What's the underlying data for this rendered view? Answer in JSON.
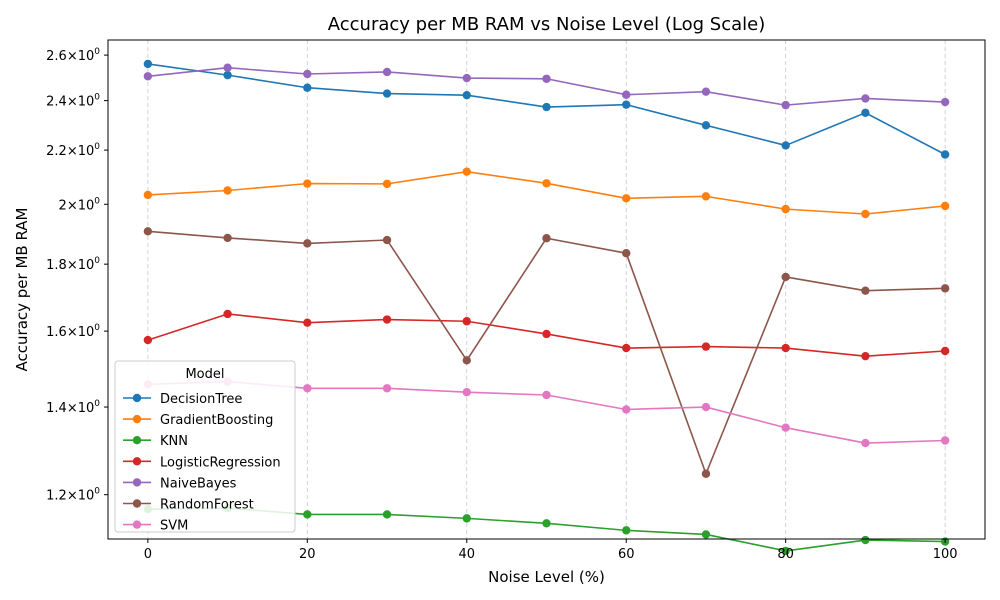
{
  "chart_data": {
    "type": "line",
    "title": "Accuracy per MB RAM vs Noise Level (Log Scale)",
    "xlabel": "Noise Level (%)",
    "ylabel": "Accuracy per MB RAM",
    "yscale": "log",
    "xlim": [
      -5,
      105
    ],
    "ylim": [
      1.11,
      2.67
    ],
    "x": [
      0,
      10,
      20,
      30,
      40,
      50,
      60,
      70,
      80,
      90,
      100
    ],
    "x_ticks": [
      "0",
      "20",
      "40",
      "60",
      "80",
      "100"
    ],
    "x_tick_values": [
      0,
      20,
      40,
      60,
      80,
      100
    ],
    "y_tick_values": [
      1.2,
      1.4,
      1.6,
      1.8,
      2.0,
      2.2,
      2.4,
      2.6
    ],
    "y_ticks": [
      {
        "mant": "1.2",
        "base": "10",
        "exp": "0"
      },
      {
        "mant": "1.4",
        "base": "10",
        "exp": "0"
      },
      {
        "mant": "1.6",
        "base": "10",
        "exp": "0"
      },
      {
        "mant": "1.8",
        "base": "10",
        "exp": "0"
      },
      {
        "mant": "2",
        "base": "10",
        "exp": "0"
      },
      {
        "mant": "2.2",
        "base": "10",
        "exp": "0"
      },
      {
        "mant": "2.4",
        "base": "10",
        "exp": "0"
      },
      {
        "mant": "2.6",
        "base": "10",
        "exp": "0"
      }
    ],
    "grid": "x-dashed",
    "legend": {
      "title": "Model",
      "placement": "lower-left"
    },
    "series": [
      {
        "name": "DecisionTree",
        "color": "#1f77b4",
        "values": [
          2.56,
          2.51,
          2.455,
          2.43,
          2.423,
          2.373,
          2.383,
          2.298,
          2.218,
          2.349,
          2.183
        ]
      },
      {
        "name": "GradientBoosting",
        "color": "#ff7f0e",
        "values": [
          2.033,
          2.049,
          2.074,
          2.073,
          2.118,
          2.075,
          2.021,
          2.028,
          1.983,
          1.966,
          1.994
        ]
      },
      {
        "name": "KNN",
        "color": "#2ca02c",
        "values": [
          1.17,
          1.172,
          1.159,
          1.159,
          1.151,
          1.141,
          1.127,
          1.119,
          1.087,
          1.108,
          1.105
        ]
      },
      {
        "name": "LogisticRegression",
        "color": "#d62728",
        "values": [
          1.575,
          1.649,
          1.624,
          1.633,
          1.628,
          1.592,
          1.553,
          1.557,
          1.553,
          1.531,
          1.545
        ]
      },
      {
        "name": "NaiveBayes",
        "color": "#9467bd",
        "values": [
          2.505,
          2.543,
          2.515,
          2.524,
          2.497,
          2.494,
          2.425,
          2.438,
          2.381,
          2.409,
          2.394
        ]
      },
      {
        "name": "RandomForest",
        "color": "#8c564b",
        "values": [
          1.907,
          1.885,
          1.867,
          1.878,
          1.52,
          1.884,
          1.835,
          1.245,
          1.76,
          1.718,
          1.725
        ]
      },
      {
        "name": "SVM",
        "color": "#e377c2",
        "values": [
          1.457,
          1.464,
          1.447,
          1.447,
          1.437,
          1.43,
          1.394,
          1.4,
          1.35,
          1.314,
          1.32
        ]
      }
    ]
  }
}
